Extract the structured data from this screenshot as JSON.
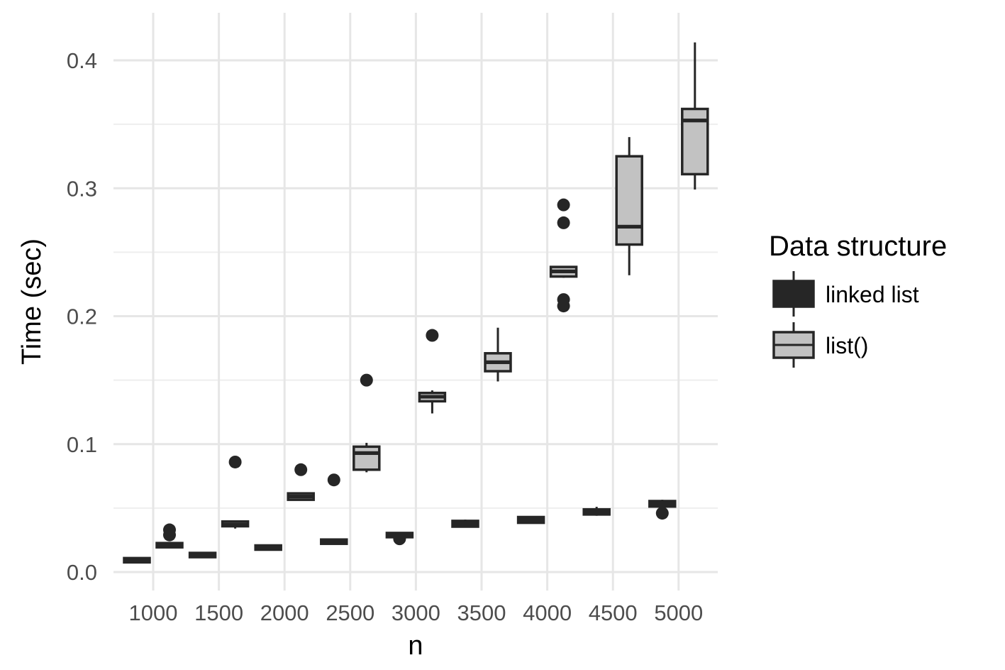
{
  "chart_data": {
    "type": "boxplot",
    "title": "",
    "xlabel": "n",
    "ylabel": "Time (sec)",
    "categories": [
      "1000",
      "1500",
      "2000",
      "2500",
      "3000",
      "3500",
      "4000",
      "4500",
      "5000"
    ],
    "ylim": [
      -0.015,
      0.435
    ],
    "yticks": [
      0.0,
      0.1,
      0.2,
      0.3,
      0.4
    ],
    "ytick_labels": [
      "0.0",
      "0.1",
      "0.2",
      "0.3",
      "0.4"
    ],
    "grid": true,
    "legend": {
      "title": "Data structure",
      "placement": "right",
      "entries": [
        "linked list",
        "list()"
      ]
    },
    "colors": {
      "linked_list_fill": "#262626",
      "list_fill": "#c2c2c2",
      "outline": "#262626",
      "grid_major": "#e6e6e6",
      "grid_minor": "#eeeeee"
    },
    "series": [
      {
        "name": "linked list",
        "boxes": [
          {
            "x": "1000",
            "lower_whisker": 0.0085,
            "q1": 0.0088,
            "median": 0.0092,
            "q3": 0.0097,
            "upper_whisker": 0.01,
            "outliers": []
          },
          {
            "x": "1500",
            "lower_whisker": 0.0125,
            "q1": 0.0128,
            "median": 0.0132,
            "q3": 0.0138,
            "upper_whisker": 0.014,
            "outliers": []
          },
          {
            "x": "2000",
            "lower_whisker": 0.018,
            "q1": 0.0185,
            "median": 0.019,
            "q3": 0.0198,
            "upper_whisker": 0.02,
            "outliers": []
          },
          {
            "x": "2500",
            "lower_whisker": 0.0225,
            "q1": 0.0228,
            "median": 0.0232,
            "q3": 0.0247,
            "upper_whisker": 0.025,
            "outliers": [
              0.072
            ]
          },
          {
            "x": "3000",
            "lower_whisker": 0.0275,
            "q1": 0.0278,
            "median": 0.0292,
            "q3": 0.03,
            "upper_whisker": 0.0305,
            "outliers": [
              0.026
            ]
          },
          {
            "x": "3500",
            "lower_whisker": 0.035,
            "q1": 0.0355,
            "median": 0.037,
            "q3": 0.04,
            "upper_whisker": 0.041,
            "outliers": []
          },
          {
            "x": "4000",
            "lower_whisker": 0.038,
            "q1": 0.0385,
            "median": 0.0402,
            "q3": 0.043,
            "upper_whisker": 0.0435,
            "outliers": []
          },
          {
            "x": "4500",
            "lower_whisker": 0.044,
            "q1": 0.045,
            "median": 0.047,
            "q3": 0.049,
            "upper_whisker": 0.051,
            "outliers": []
          },
          {
            "x": "5000",
            "lower_whisker": 0.051,
            "q1": 0.0512,
            "median": 0.053,
            "q3": 0.0555,
            "upper_whisker": 0.0565,
            "outliers": [
              0.046
            ]
          }
        ]
      },
      {
        "name": "list()",
        "boxes": [
          {
            "x": "1000",
            "lower_whisker": 0.019,
            "q1": 0.0195,
            "median": 0.021,
            "q3": 0.0225,
            "upper_whisker": 0.023,
            "outliers": [
              0.029,
              0.033
            ]
          },
          {
            "x": "1500",
            "lower_whisker": 0.034,
            "q1": 0.0358,
            "median": 0.037,
            "q3": 0.0395,
            "upper_whisker": 0.04,
            "outliers": [
              0.086
            ]
          },
          {
            "x": "2000",
            "lower_whisker": 0.056,
            "q1": 0.0565,
            "median": 0.059,
            "q3": 0.0615,
            "upper_whisker": 0.062,
            "outliers": [
              0.08
            ]
          },
          {
            "x": "2500",
            "lower_whisker": 0.078,
            "q1": 0.08,
            "median": 0.093,
            "q3": 0.098,
            "upper_whisker": 0.101,
            "outliers": [
              0.15
            ]
          },
          {
            "x": "3000",
            "lower_whisker": 0.124,
            "q1": 0.1335,
            "median": 0.137,
            "q3": 0.14,
            "upper_whisker": 0.142,
            "outliers": [
              0.185
            ]
          },
          {
            "x": "3500",
            "lower_whisker": 0.149,
            "q1": 0.157,
            "median": 0.164,
            "q3": 0.171,
            "upper_whisker": 0.191,
            "outliers": []
          },
          {
            "x": "4000",
            "lower_whisker": 0.23,
            "q1": 0.231,
            "median": 0.235,
            "q3": 0.2385,
            "upper_whisker": 0.239,
            "outliers": [
              0.208,
              0.213,
              0.273,
              0.287
            ]
          },
          {
            "x": "4500",
            "lower_whisker": 0.232,
            "q1": 0.256,
            "median": 0.27,
            "q3": 0.325,
            "upper_whisker": 0.34,
            "outliers": []
          },
          {
            "x": "5000",
            "lower_whisker": 0.299,
            "q1": 0.311,
            "median": 0.353,
            "q3": 0.362,
            "upper_whisker": 0.414,
            "outliers": []
          }
        ]
      }
    ]
  }
}
